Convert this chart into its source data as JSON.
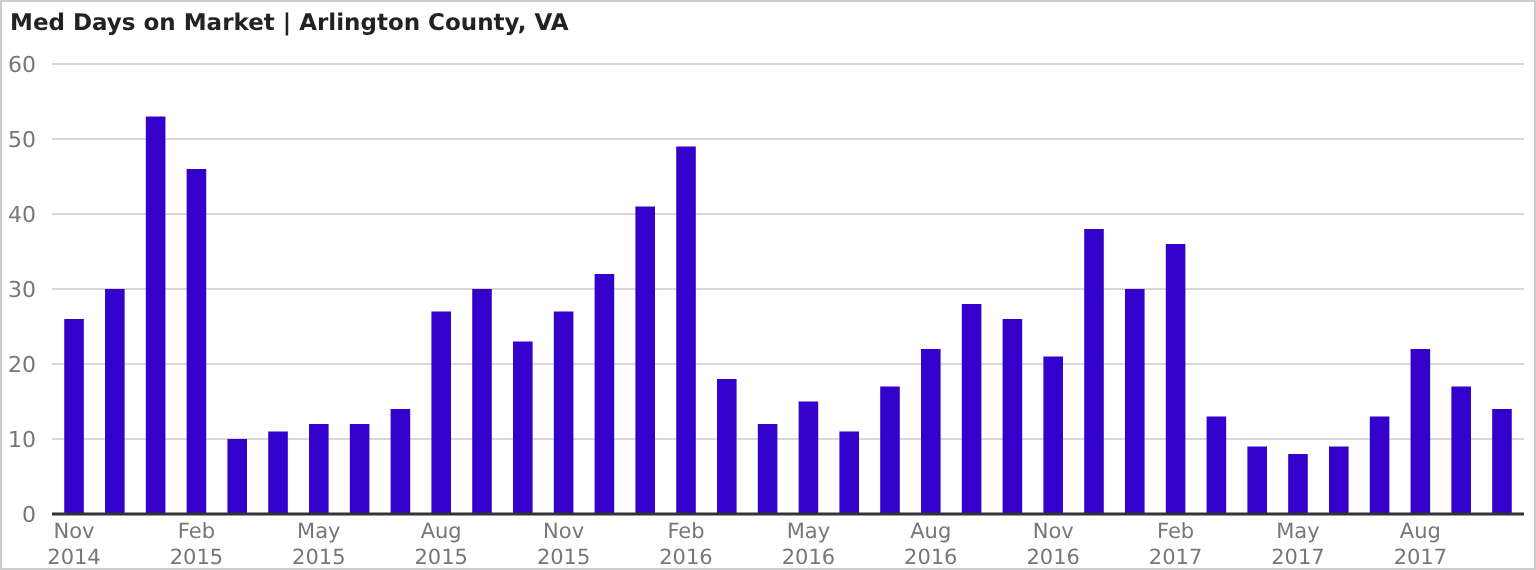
{
  "chart_data": {
    "type": "bar",
    "title": "Med Days on Market | Arlington County, VA",
    "categories": [
      "Nov 2014",
      null,
      null,
      "Feb 2015",
      null,
      null,
      "May 2015",
      null,
      null,
      "Aug 2015",
      null,
      null,
      "Nov 2015",
      null,
      null,
      "Feb 2016",
      null,
      null,
      "May 2016",
      null,
      null,
      "Aug 2016",
      null,
      null,
      "Nov 2016",
      null,
      null,
      "Feb 2017",
      null,
      null,
      "May 2017",
      null,
      null,
      "Aug 2017",
      null,
      null
    ],
    "values": [
      26,
      30,
      53,
      46,
      10,
      11,
      12,
      12,
      14,
      27,
      30,
      23,
      27,
      32,
      41,
      49,
      18,
      12,
      15,
      11,
      17,
      22,
      28,
      26,
      21,
      38,
      30,
      36,
      13,
      9,
      8,
      9,
      13,
      22,
      17,
      14
    ],
    "color": "#3300cc",
    "ylim": [
      0,
      60
    ],
    "yticks": [
      0,
      10,
      20,
      30,
      40,
      50,
      60
    ],
    "grid": "y"
  }
}
